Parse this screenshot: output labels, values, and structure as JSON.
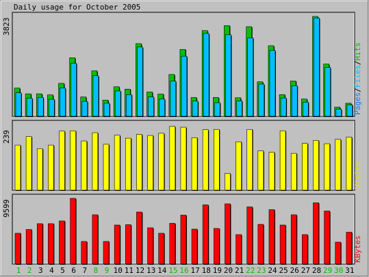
{
  "chart_data": [
    {
      "type": "bar",
      "title": "Daily usage for October 2005",
      "categories": [
        "1",
        "2",
        "3",
        "4",
        "5",
        "6",
        "7",
        "8",
        "9",
        "10",
        "11",
        "12",
        "13",
        "14",
        "15",
        "16",
        "17",
        "18",
        "19",
        "20",
        "21",
        "22",
        "23",
        "24",
        "25",
        "26",
        "27",
        "28",
        "29",
        "30",
        "31"
      ],
      "weekend_days": [
        "1",
        "2",
        "8",
        "9",
        "15",
        "16",
        "22",
        "23",
        "29",
        "30"
      ],
      "legend": [
        "Pages",
        "Files",
        "Hits"
      ],
      "ymax_label": "3823",
      "ylim": [
        0,
        3823
      ],
      "series": [
        {
          "name": "Hits",
          "values": [
            1080,
            860,
            860,
            820,
            1260,
            2240,
            740,
            1740,
            620,
            1130,
            1040,
            2780,
            930,
            850,
            1600,
            2560,
            720,
            3280,
            720,
            3470,
            710,
            3430,
            1320,
            2700,
            830,
            1350,
            660,
            3823,
            2000,
            350,
            500
          ]
        },
        {
          "name": "Files",
          "values": [
            900,
            690,
            720,
            650,
            1080,
            2030,
            570,
            1550,
            500,
            970,
            830,
            2650,
            740,
            660,
            1350,
            2300,
            580,
            3170,
            520,
            3120,
            590,
            3000,
            1230,
            2520,
            700,
            1170,
            540,
            3760,
            1870,
            270,
            440
          ]
        },
        {
          "name": "Pages",
          "values": [
            840,
            640,
            690,
            620,
            1010,
            1940,
            520,
            1480,
            460,
            900,
            790,
            2580,
            700,
            610,
            1280,
            2240,
            530,
            3100,
            490,
            3050,
            560,
            2930,
            1180,
            2450,
            670,
            1110,
            500,
            3740,
            1830,
            240,
            420
          ]
        }
      ],
      "colors": {
        "Hits": "#00c000",
        "Files": "#00c0ff",
        "Pages": "#0080ff"
      }
    },
    {
      "type": "bar",
      "categories": [
        "1",
        "2",
        "3",
        "4",
        "5",
        "6",
        "7",
        "8",
        "9",
        "10",
        "11",
        "12",
        "13",
        "14",
        "15",
        "16",
        "17",
        "18",
        "19",
        "20",
        "21",
        "22",
        "23",
        "24",
        "25",
        "26",
        "27",
        "28",
        "29",
        "30",
        "31"
      ],
      "legend": [
        "Visits"
      ],
      "ymax_label": "239",
      "ylim": [
        0,
        239
      ],
      "series": [
        {
          "name": "Visits",
          "values": [
            164,
            195,
            151,
            164,
            215,
            216,
            179,
            209,
            167,
            200,
            189,
            203,
            199,
            207,
            232,
            229,
            191,
            220,
            221,
            61,
            176,
            221,
            143,
            138,
            216,
            134,
            170,
            181,
            169,
            185,
            193
          ]
        }
      ],
      "colors": {
        "Visits": "#ffff00"
      }
    },
    {
      "type": "bar",
      "categories": [
        "1",
        "2",
        "3",
        "4",
        "5",
        "6",
        "7",
        "8",
        "9",
        "10",
        "11",
        "12",
        "13",
        "14",
        "15",
        "16",
        "17",
        "18",
        "19",
        "20",
        "21",
        "22",
        "23",
        "24",
        "25",
        "26",
        "27",
        "28",
        "29",
        "30",
        "31"
      ],
      "legend": [
        "KBytes"
      ],
      "ymax_label": "9599",
      "ylim": [
        0,
        9599
      ],
      "series": [
        {
          "name": "KBytes",
          "values": [
            4500,
            5050,
            5900,
            5900,
            6300,
            9599,
            3300,
            7200,
            3300,
            5700,
            5750,
            7600,
            5300,
            4500,
            5950,
            7150,
            5100,
            8650,
            5200,
            8800,
            4300,
            8350,
            5800,
            7950,
            5700,
            7200,
            4300,
            8950,
            7750,
            3200,
            4650
          ]
        }
      ],
      "colors": {
        "KBytes": "#ff0000"
      }
    }
  ],
  "colors": {
    "background": "#c0c0c0",
    "weekday_label": "#000000",
    "weekend_label": "#00c000"
  }
}
